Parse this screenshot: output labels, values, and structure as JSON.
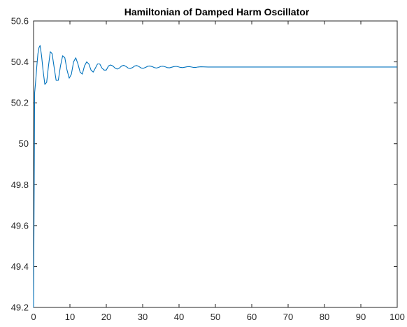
{
  "chart_data": {
    "type": "line",
    "title": "Hamiltonian of Damped Harm Oscillator",
    "xlabel": "",
    "ylabel": "",
    "xlim": [
      0,
      100
    ],
    "ylim": [
      49.2,
      50.6
    ],
    "xticks": [
      0,
      10,
      20,
      30,
      40,
      50,
      60,
      70,
      80,
      90,
      100
    ],
    "yticks": [
      49.2,
      49.4,
      49.6,
      49.8,
      50,
      50.2,
      50.4,
      50.6
    ],
    "xtick_labels": [
      "0",
      "10",
      "20",
      "30",
      "40",
      "50",
      "60",
      "70",
      "80",
      "90",
      "100"
    ],
    "ytick_labels": [
      "49.2",
      "49.4",
      "49.6",
      "49.8",
      "50",
      "50.2",
      "50.4",
      "50.6"
    ],
    "grid": false,
    "legend": "none",
    "series": [
      {
        "color": "#0072BD",
        "x": [
          0,
          0.3,
          0.6,
          0.9,
          1.2,
          1.5,
          1.8,
          2.2,
          2.6,
          3.1,
          3.6,
          4.1,
          4.6,
          5.1,
          5.6,
          6.2,
          6.8,
          7.4,
          8.0,
          8.6,
          9.2,
          9.8,
          10.4,
          11.0,
          11.6,
          12.2,
          12.8,
          13.4,
          14.0,
          14.6,
          15.2,
          15.8,
          16.4,
          17.0,
          17.6,
          18.2,
          18.8,
          19.4,
          20.0,
          20.6,
          21.2,
          21.8,
          22.4,
          23.0,
          23.6,
          24.2,
          24.8,
          25.4,
          26.0,
          26.6,
          27.2,
          27.8,
          28.4,
          29.0,
          29.6,
          30.2,
          30.8,
          31.4,
          32.0,
          32.6,
          33.2,
          33.8,
          34.4,
          35.0,
          35.6,
          36.2,
          36.8,
          37.4,
          38.0,
          38.6,
          39.2,
          39.8,
          40.4,
          41.0,
          41.6,
          42.2,
          42.8,
          43.4,
          44.0,
          44.6,
          45.2,
          46.0,
          48.0,
          50.0,
          55.0,
          60.0,
          70.0,
          80.0,
          90.0,
          100.0
        ],
        "y": [
          49.2,
          50.25,
          50.31,
          50.38,
          50.44,
          50.47,
          50.48,
          50.43,
          50.36,
          50.29,
          50.3,
          50.38,
          50.45,
          50.44,
          50.38,
          50.31,
          50.31,
          50.38,
          50.43,
          50.42,
          50.36,
          50.32,
          50.34,
          50.4,
          50.42,
          50.39,
          50.35,
          50.34,
          50.38,
          50.4,
          50.39,
          50.36,
          50.35,
          50.37,
          50.39,
          50.39,
          50.37,
          50.36,
          50.36,
          50.38,
          50.385,
          50.38,
          50.37,
          50.365,
          50.37,
          50.38,
          50.383,
          50.378,
          50.37,
          50.368,
          50.372,
          50.38,
          50.382,
          50.377,
          50.37,
          50.369,
          50.373,
          50.379,
          50.38,
          50.377,
          50.372,
          50.37,
          50.373,
          50.378,
          50.379,
          50.376,
          50.372,
          50.371,
          50.374,
          50.377,
          50.378,
          50.376,
          50.373,
          50.372,
          50.374,
          50.376,
          50.377,
          50.375,
          50.373,
          50.373,
          50.375,
          50.376,
          50.375,
          50.375,
          50.375,
          50.375,
          50.375,
          50.375,
          50.375,
          50.375
        ]
      }
    ]
  }
}
